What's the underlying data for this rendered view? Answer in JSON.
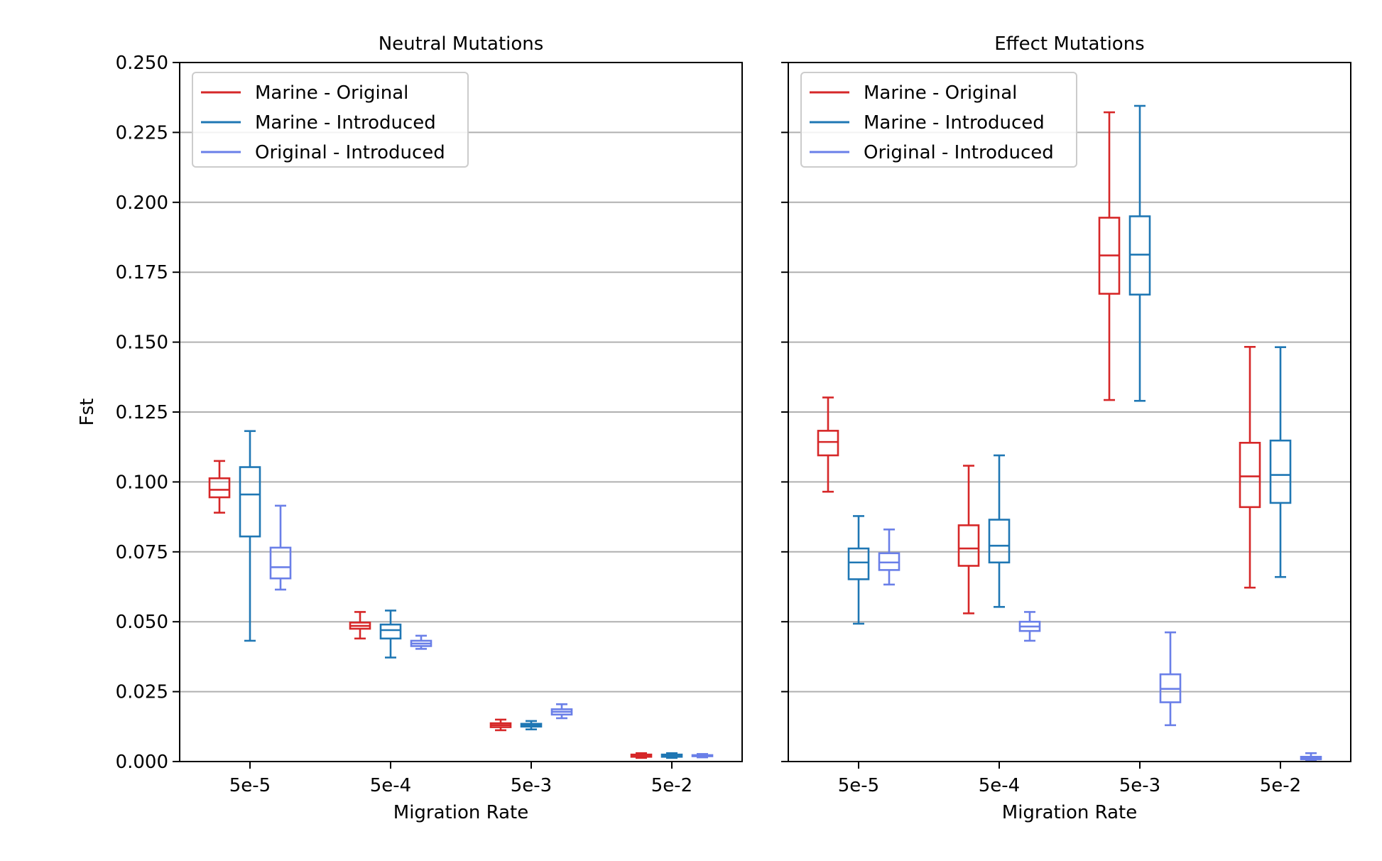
{
  "chart_data": [
    {
      "type": "box",
      "title": "Neutral Mutations",
      "xlabel": "Migration Rate",
      "ylabel": "Fst",
      "ylim": [
        0,
        0.25
      ],
      "yticks": [
        "0.000",
        "0.025",
        "0.050",
        "0.075",
        "0.100",
        "0.125",
        "0.150",
        "0.175",
        "0.200",
        "0.225",
        "0.250"
      ],
      "grid": "horizontal",
      "legend_position": "top-left",
      "categories": [
        "5e-5",
        "5e-4",
        "5e-3",
        "5e-2"
      ],
      "series": [
        {
          "name": "Marine - Original",
          "color": "#d62728",
          "boxes": [
            {
              "whislo": 0.089,
              "q1": 0.0945,
              "med": 0.0972,
              "q3": 0.1013,
              "whishi": 0.1075
            },
            {
              "whislo": 0.044,
              "q1": 0.0475,
              "med": 0.0485,
              "q3": 0.0497,
              "whishi": 0.0535
            },
            {
              "whislo": 0.0112,
              "q1": 0.0123,
              "med": 0.013,
              "q3": 0.0137,
              "whishi": 0.015
            },
            {
              "whislo": 0.0013,
              "q1": 0.0017,
              "med": 0.0021,
              "q3": 0.0025,
              "whishi": 0.003
            }
          ]
        },
        {
          "name": "Marine - Introduced",
          "color": "#1f77b4",
          "boxes": [
            {
              "whislo": 0.0432,
              "q1": 0.0805,
              "med": 0.0955,
              "q3": 0.1053,
              "whishi": 0.1182
            },
            {
              "whislo": 0.0372,
              "q1": 0.044,
              "med": 0.047,
              "q3": 0.049,
              "whishi": 0.054
            },
            {
              "whislo": 0.0115,
              "q1": 0.0125,
              "med": 0.013,
              "q3": 0.0135,
              "whishi": 0.0145
            },
            {
              "whislo": 0.0013,
              "q1": 0.0017,
              "med": 0.0021,
              "q3": 0.0025,
              "whishi": 0.003
            }
          ]
        },
        {
          "name": "Original - Introduced",
          "color": "#6a7fe8",
          "boxes": [
            {
              "whislo": 0.0615,
              "q1": 0.0655,
              "med": 0.0695,
              "q3": 0.0765,
              "whishi": 0.0915
            },
            {
              "whislo": 0.0403,
              "q1": 0.0413,
              "med": 0.0422,
              "q3": 0.0432,
              "whishi": 0.045
            },
            {
              "whislo": 0.0155,
              "q1": 0.0168,
              "med": 0.0178,
              "q3": 0.0187,
              "whishi": 0.0205
            },
            {
              "whislo": 0.0015,
              "q1": 0.0019,
              "med": 0.0021,
              "q3": 0.0023,
              "whishi": 0.0027
            }
          ]
        }
      ]
    },
    {
      "type": "box",
      "title": "Effect Mutations",
      "xlabel": "Migration Rate",
      "ylabel": "",
      "ylim": [
        0,
        0.25
      ],
      "grid": "horizontal",
      "legend_position": "top-left",
      "categories": [
        "5e-5",
        "5e-4",
        "5e-3",
        "5e-2"
      ],
      "series": [
        {
          "name": "Marine - Original",
          "color": "#d62728",
          "boxes": [
            {
              "whislo": 0.0965,
              "q1": 0.1095,
              "med": 0.1143,
              "q3": 0.1183,
              "whishi": 0.1302
            },
            {
              "whislo": 0.053,
              "q1": 0.07,
              "med": 0.0762,
              "q3": 0.0845,
              "whishi": 0.1058
            },
            {
              "whislo": 0.1293,
              "q1": 0.1673,
              "med": 0.181,
              "q3": 0.1945,
              "whishi": 0.2322
            },
            {
              "whislo": 0.0622,
              "q1": 0.091,
              "med": 0.102,
              "q3": 0.114,
              "whishi": 0.1483
            }
          ]
        },
        {
          "name": "Marine - Introduced",
          "color": "#1f77b4",
          "boxes": [
            {
              "whislo": 0.0493,
              "q1": 0.0652,
              "med": 0.0712,
              "q3": 0.0762,
              "whishi": 0.0878
            },
            {
              "whislo": 0.0553,
              "q1": 0.0712,
              "med": 0.0772,
              "q3": 0.0865,
              "whishi": 0.1095
            },
            {
              "whislo": 0.129,
              "q1": 0.167,
              "med": 0.1813,
              "q3": 0.195,
              "whishi": 0.2345
            },
            {
              "whislo": 0.066,
              "q1": 0.0925,
              "med": 0.1025,
              "q3": 0.1148,
              "whishi": 0.1482
            }
          ]
        },
        {
          "name": "Original - Introduced",
          "color": "#6a7fe8",
          "boxes": [
            {
              "whislo": 0.0633,
              "q1": 0.0685,
              "med": 0.0712,
              "q3": 0.0745,
              "whishi": 0.083
            },
            {
              "whislo": 0.0432,
              "q1": 0.0467,
              "med": 0.0483,
              "q3": 0.05,
              "whishi": 0.0535
            },
            {
              "whislo": 0.013,
              "q1": 0.0212,
              "med": 0.026,
              "q3": 0.0312,
              "whishi": 0.0462
            },
            {
              "whislo": 0.0003,
              "q1": 0.0008,
              "med": 0.0012,
              "q3": 0.0017,
              "whishi": 0.003
            }
          ]
        }
      ]
    }
  ]
}
